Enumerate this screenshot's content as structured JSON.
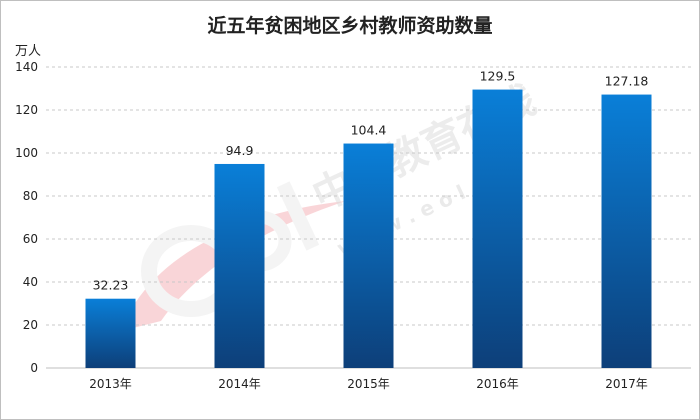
{
  "chart_data": {
    "type": "bar",
    "title": "近五年贫困地区乡村教师资助数量",
    "ylabel": "万人",
    "xlabel": "",
    "categories": [
      "2013年",
      "2014年",
      "2015年",
      "2016年",
      "2017年"
    ],
    "values": [
      32.23,
      94.9,
      104.4,
      129.5,
      127.18
    ],
    "value_labels": [
      "32.23",
      "94.9",
      "104.4",
      "129.5",
      "127.18"
    ],
    "ylim": [
      0,
      140
    ],
    "yticks": [
      0,
      20,
      40,
      60,
      80,
      100,
      120,
      140
    ],
    "grid": true,
    "legend": "none",
    "colors": {
      "bar_top": "#0a7fd8",
      "bar_bottom": "#0d3f79",
      "grid": "#c8c8c8"
    }
  },
  "watermark": {
    "brand": "中国教育在线",
    "url": "w w w . e o l . c n",
    "logo": "eol-logo"
  }
}
